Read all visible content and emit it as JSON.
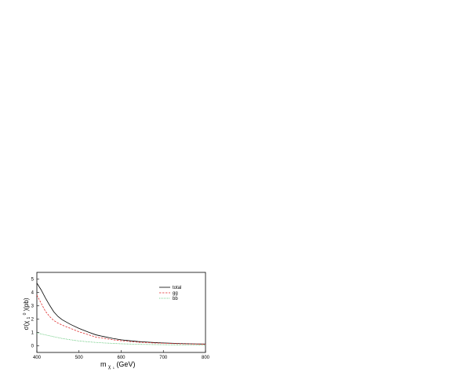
{
  "chart_data": {
    "type": "line",
    "xlabel": "m",
    "xlabel_sub": "χ",
    "xlabel_sub2": "1",
    "xlabel_unit": "(GeV)",
    "ylabel": "σ(χ",
    "ylabel_sub": "1",
    "ylabel_sup": "0",
    "ylabel_unit": ")(pb)",
    "xlim": [
      400,
      800
    ],
    "ylim": [
      -0.5,
      5.5
    ],
    "x_ticks": [
      400,
      500,
      600,
      700,
      800
    ],
    "y_ticks": [
      0,
      1,
      2,
      3,
      4,
      5
    ],
    "grid": false,
    "legend_position": "top-right",
    "series": [
      {
        "name": "total",
        "color": "#000000",
        "dash": "solid",
        "x": [
          400,
          410,
          420,
          430,
          440,
          450,
          460,
          480,
          500,
          520,
          540,
          560,
          580,
          600,
          620,
          640,
          660,
          680,
          700,
          720,
          740,
          760,
          780,
          800
        ],
        "y": [
          4.7,
          4.2,
          3.6,
          3.05,
          2.55,
          2.2,
          1.95,
          1.6,
          1.3,
          1.05,
          0.82,
          0.68,
          0.55,
          0.45,
          0.38,
          0.32,
          0.28,
          0.24,
          0.21,
          0.19,
          0.17,
          0.15,
          0.14,
          0.13
        ]
      },
      {
        "name": "gg",
        "color": "#e03030",
        "dash": "dashed",
        "x": [
          400,
          410,
          420,
          430,
          440,
          450,
          460,
          480,
          500,
          520,
          540,
          560,
          580,
          600,
          620,
          640,
          660,
          680,
          700,
          720,
          740,
          760,
          780,
          800
        ],
        "y": [
          3.8,
          3.2,
          2.6,
          2.2,
          1.9,
          1.7,
          1.55,
          1.3,
          1.05,
          0.85,
          0.65,
          0.55,
          0.45,
          0.38,
          0.32,
          0.27,
          0.24,
          0.21,
          0.19,
          0.17,
          0.15,
          0.14,
          0.13,
          0.12
        ]
      },
      {
        "name": "bb",
        "color": "#2bb34a",
        "dash": "dotted",
        "x": [
          400,
          420,
          440,
          460,
          480,
          500,
          520,
          540,
          560,
          580,
          600,
          620,
          640,
          660,
          680,
          700,
          720,
          740,
          760,
          780,
          800
        ],
        "y": [
          0.95,
          0.82,
          0.68,
          0.55,
          0.45,
          0.36,
          0.3,
          0.25,
          0.21,
          0.18,
          0.15,
          0.13,
          0.11,
          0.1,
          0.09,
          0.08,
          0.07,
          0.06,
          0.05,
          0.05,
          0.04
        ]
      }
    ]
  }
}
